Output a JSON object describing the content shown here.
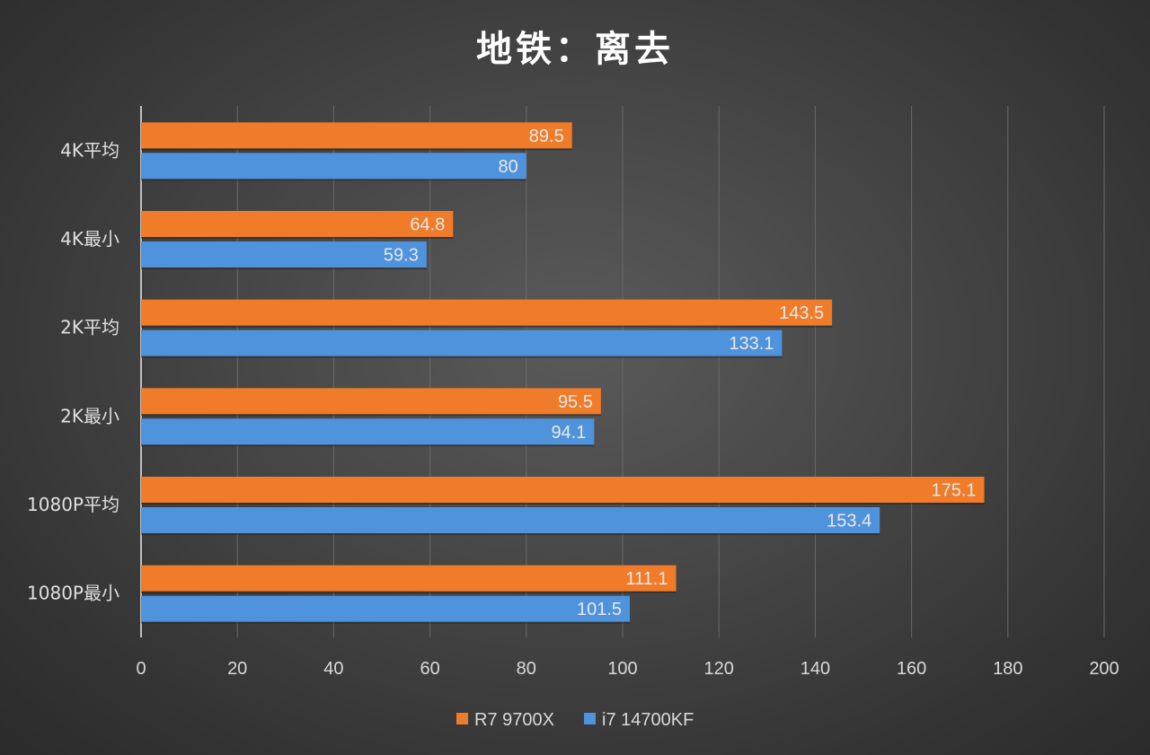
{
  "chart_data": {
    "type": "bar",
    "orientation": "horizontal",
    "title": "地铁：离去",
    "categories": [
      "4K平均",
      "4K最小",
      "2K平均",
      "2K最小",
      "1080P平均",
      "1080P最小"
    ],
    "series": [
      {
        "name": "R7 9700X",
        "color": "#f07c2a",
        "values": [
          89.5,
          64.8,
          143.5,
          95.5,
          175.1,
          111.1
        ]
      },
      {
        "name": "i7 14700KF",
        "color": "#4f93dc",
        "values": [
          80,
          59.3,
          133.1,
          94.1,
          153.4,
          101.5
        ]
      }
    ],
    "xlim": [
      0,
      200
    ],
    "xticks": [
      0,
      20,
      40,
      60,
      80,
      100,
      120,
      140,
      160,
      180,
      200
    ],
    "grid": true,
    "legend": "bottom"
  }
}
